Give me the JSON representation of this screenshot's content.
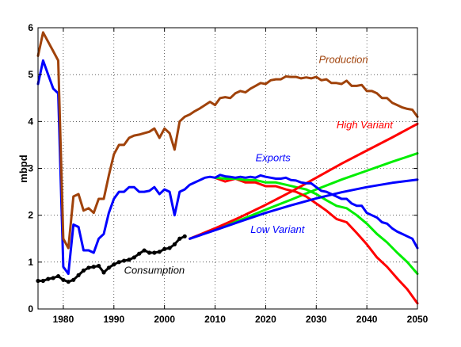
{
  "chart_data": {
    "type": "line",
    "title": "",
    "xlabel": "",
    "ylabel": "mbpd",
    "xlim": [
      1975,
      2050
    ],
    "ylim": [
      0,
      6
    ],
    "xticks": [
      1980,
      1990,
      2000,
      2010,
      2020,
      2030,
      2040,
      2050
    ],
    "yticks": [
      0,
      1,
      2,
      3,
      4,
      5,
      6
    ],
    "grid": true,
    "series": [
      {
        "name": "Production",
        "color": "#a0420a",
        "x": [
          1975,
          1976,
          1977,
          1978,
          1979,
          1980,
          1981,
          1982,
          1983,
          1984,
          1985,
          1986,
          1987,
          1988,
          1989,
          1990,
          1991,
          1992,
          1993,
          1994,
          1995,
          1996,
          1997,
          1998,
          1999,
          2000,
          2001,
          2002,
          2003,
          2004,
          2005,
          2006,
          2007,
          2008,
          2009,
          2010,
          2011,
          2012,
          2013,
          2014,
          2015,
          2016,
          2017,
          2018,
          2019,
          2020,
          2021,
          2022,
          2023,
          2024,
          2025,
          2026,
          2027,
          2028,
          2029,
          2030,
          2031,
          2032,
          2033,
          2034,
          2035,
          2036,
          2037,
          2038,
          2039,
          2040,
          2041,
          2042,
          2043,
          2044,
          2045,
          2046,
          2047,
          2048,
          2049,
          2050
        ],
        "values": [
          5.4,
          5.9,
          5.7,
          5.5,
          5.3,
          1.5,
          1.3,
          2.4,
          2.45,
          2.1,
          2.15,
          2.05,
          2.35,
          2.35,
          2.85,
          3.3,
          3.5,
          3.5,
          3.65,
          3.7,
          3.72,
          3.75,
          3.78,
          3.85,
          3.65,
          3.85,
          3.75,
          3.4,
          4.0,
          4.1,
          4.15,
          4.22,
          4.28,
          4.35,
          4.42,
          4.35,
          4.5,
          4.52,
          4.5,
          4.6,
          4.65,
          4.62,
          4.7,
          4.76,
          4.82,
          4.8,
          4.88,
          4.9,
          4.9,
          4.96,
          4.95,
          4.95,
          4.92,
          4.94,
          4.92,
          4.95,
          4.88,
          4.9,
          4.82,
          4.82,
          4.8,
          4.87,
          4.76,
          4.76,
          4.78,
          4.65,
          4.65,
          4.6,
          4.5,
          4.5,
          4.4,
          4.35,
          4.3,
          4.27,
          4.25,
          4.1
        ]
      },
      {
        "name": "Exports",
        "color": "#0000ff",
        "x": [
          1975,
          1976,
          1977,
          1978,
          1979,
          1980,
          1981,
          1982,
          1983,
          1984,
          1985,
          1986,
          1987,
          1988,
          1989,
          1990,
          1991,
          1992,
          1993,
          1994,
          1995,
          1996,
          1997,
          1998,
          1999,
          2000,
          2001,
          2002,
          2003,
          2004,
          2005,
          2006,
          2007,
          2008,
          2009,
          2010,
          2011,
          2012,
          2013,
          2014,
          2015,
          2016,
          2017,
          2018,
          2019,
          2020,
          2021,
          2022,
          2023,
          2024,
          2025,
          2026,
          2027,
          2028,
          2029,
          2030,
          2031,
          2032,
          2033,
          2034,
          2035,
          2036,
          2037,
          2038,
          2039,
          2040,
          2041,
          2042,
          2043,
          2044,
          2045,
          2046,
          2047,
          2048,
          2049,
          2050
        ],
        "values": [
          4.8,
          5.3,
          5.0,
          4.7,
          4.6,
          0.9,
          0.75,
          1.8,
          1.75,
          1.25,
          1.25,
          1.2,
          1.5,
          1.6,
          2.05,
          2.35,
          2.5,
          2.5,
          2.6,
          2.6,
          2.5,
          2.5,
          2.52,
          2.6,
          2.45,
          2.55,
          2.5,
          2.0,
          2.5,
          2.55,
          2.65,
          2.7,
          2.75,
          2.8,
          2.82,
          2.8,
          2.86,
          2.83,
          2.82,
          2.8,
          2.82,
          2.8,
          2.82,
          2.8,
          2.85,
          2.82,
          2.8,
          2.78,
          2.78,
          2.8,
          2.75,
          2.74,
          2.7,
          2.68,
          2.68,
          2.6,
          2.52,
          2.5,
          2.45,
          2.4,
          2.35,
          2.35,
          2.25,
          2.2,
          2.2,
          2.05,
          2.0,
          1.95,
          1.85,
          1.82,
          1.72,
          1.65,
          1.6,
          1.55,
          1.5,
          1.3
        ]
      },
      {
        "name": "Consumption",
        "color": "#000000",
        "markers": true,
        "x": [
          1975,
          1976,
          1977,
          1978,
          1979,
          1980,
          1981,
          1982,
          1983,
          1984,
          1985,
          1986,
          1987,
          1988,
          1989,
          1990,
          1991,
          1992,
          1993,
          1994,
          1995,
          1996,
          1997,
          1998,
          1999,
          2000,
          2001,
          2002,
          2003,
          2004
        ],
        "values": [
          0.6,
          0.6,
          0.64,
          0.66,
          0.7,
          0.62,
          0.58,
          0.62,
          0.72,
          0.82,
          0.88,
          0.9,
          0.92,
          0.78,
          0.88,
          0.95,
          1.0,
          1.03,
          1.05,
          1.1,
          1.18,
          1.25,
          1.2,
          1.2,
          1.22,
          1.28,
          1.3,
          1.38,
          1.5,
          1.55
        ]
      },
      {
        "name": "High Variant",
        "color": "#ff0000",
        "x": [
          2005,
          2010,
          2015,
          2020,
          2025,
          2030,
          2035,
          2040,
          2045,
          2050
        ],
        "values": [
          1.5,
          1.72,
          1.96,
          2.22,
          2.5,
          2.8,
          3.1,
          3.38,
          3.66,
          3.95
        ]
      },
      {
        "name": "",
        "color": "#00ee00",
        "x": [
          2005,
          2010,
          2015,
          2020,
          2025,
          2030,
          2035,
          2040,
          2045,
          2050
        ],
        "values": [
          1.5,
          1.7,
          1.9,
          2.12,
          2.33,
          2.55,
          2.76,
          2.95,
          3.14,
          3.32
        ]
      },
      {
        "name": "Low Variant",
        "color": "#0000ff",
        "x": [
          2005,
          2010,
          2015,
          2020,
          2025,
          2030,
          2035,
          2040,
          2045,
          2050
        ],
        "values": [
          1.5,
          1.68,
          1.87,
          2.05,
          2.21,
          2.36,
          2.49,
          2.6,
          2.69,
          2.76
        ]
      },
      {
        "name": "",
        "color": "#ff0000",
        "x": [
          2010,
          2012,
          2014,
          2016,
          2018,
          2020,
          2022,
          2024,
          2026,
          2028,
          2030,
          2032,
          2034,
          2036,
          2038,
          2040,
          2042,
          2044,
          2046,
          2048,
          2050
        ],
        "values": [
          2.8,
          2.72,
          2.78,
          2.7,
          2.7,
          2.62,
          2.62,
          2.55,
          2.5,
          2.4,
          2.25,
          2.1,
          1.92,
          1.85,
          1.62,
          1.38,
          1.1,
          0.9,
          0.65,
          0.42,
          0.12
        ]
      },
      {
        "name": "",
        "color": "#00ee00",
        "x": [
          2010,
          2012,
          2014,
          2016,
          2018,
          2020,
          2022,
          2024,
          2026,
          2028,
          2030,
          2032,
          2034,
          2036,
          2038,
          2040,
          2042,
          2044,
          2046,
          2048,
          2050
        ],
        "values": [
          2.8,
          2.78,
          2.78,
          2.75,
          2.75,
          2.7,
          2.7,
          2.65,
          2.6,
          2.55,
          2.45,
          2.32,
          2.2,
          2.15,
          2.0,
          1.82,
          1.6,
          1.42,
          1.2,
          1.0,
          0.75
        ]
      }
    ],
    "annotations": [
      {
        "text": "Production",
        "color": "#a0420a",
        "x": 2030.5,
        "y": 5.25
      },
      {
        "text": "High Variant",
        "color": "#ff0000",
        "x": 2034,
        "y": 3.85
      },
      {
        "text": "Exports",
        "color": "#0000ff",
        "x": 2018,
        "y": 3.15
      },
      {
        "text": "Low Variant",
        "color": "#0000ff",
        "x": 2017,
        "y": 1.62
      },
      {
        "text": "Consumption",
        "color": "#000000",
        "x": 1992,
        "y": 0.75
      }
    ]
  }
}
